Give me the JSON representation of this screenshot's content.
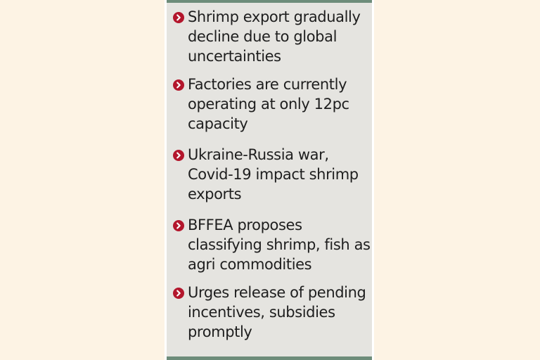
{
  "bullets": [
    {
      "text": "Shrimp export gradually decline due to global uncertainties"
    },
    {
      "text": "Factories are currently operating at only 12pc capacity"
    },
    {
      "text": "Ukraine-Russia war, Covid-19 impact shrimp exports"
    },
    {
      "text": "BFFEA proposes classifying shrimp, fish as agri commodities"
    },
    {
      "text": "Urges release of pending incentives, subsidies promptly"
    }
  ],
  "colors": {
    "background": "#fdf3e4",
    "panel": "#e5e4e0",
    "rule": "#6d8c7a",
    "bullet": "#b3162c",
    "text": "#1e1e1e"
  },
  "icons": {
    "bullet": "chevron-circle-right-icon"
  }
}
